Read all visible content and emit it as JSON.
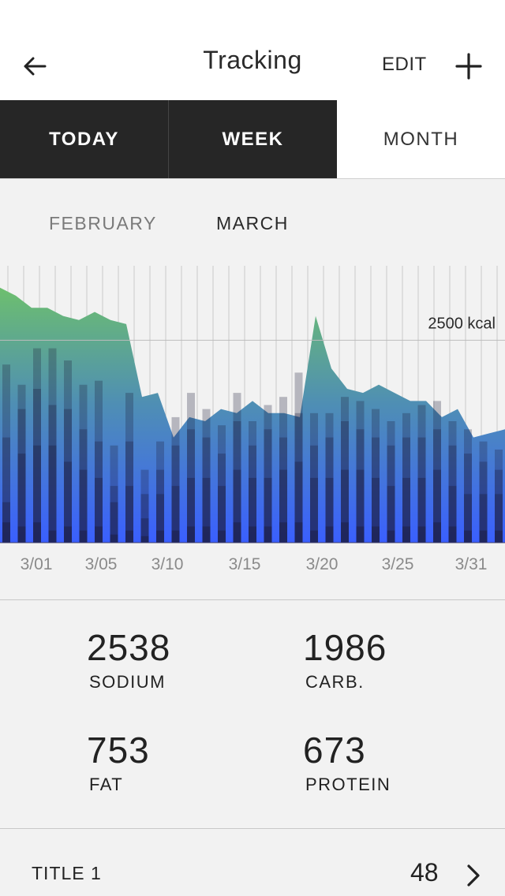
{
  "header": {
    "title": "Tracking",
    "edit_label": "EDIT",
    "back_icon": "arrow-left-icon",
    "add_icon": "plus-icon"
  },
  "tabs": [
    {
      "label": "TODAY",
      "active": false
    },
    {
      "label": "WEEK",
      "active": false
    },
    {
      "label": "MONTH",
      "active": true
    }
  ],
  "months": {
    "previous": "FEBRUARY",
    "current": "MARCH"
  },
  "chart_data": {
    "type": "area",
    "reference_line": {
      "value": 2500,
      "label": "2500 kcal"
    },
    "ylim": [
      0,
      3400
    ],
    "x_tick_labels": [
      "3/01",
      "3/05",
      "3/10",
      "3/15",
      "3/20",
      "3/25",
      "3/31"
    ],
    "area_values": [
      3150,
      3050,
      2900,
      2900,
      2800,
      2750,
      2850,
      2750,
      2700,
      1800,
      1850,
      1300,
      1550,
      1500,
      1650,
      1600,
      1750,
      1600,
      1600,
      1550,
      2800,
      2150,
      1900,
      1850,
      1950,
      1850,
      1750,
      1750,
      1550,
      1650,
      1300,
      1350,
      1400
    ],
    "bar_series": [
      {
        "values": [
          2200,
          1950,
          2400,
          2400,
          2250,
          1950,
          2000,
          1200,
          1850,
          900,
          1250,
          1550,
          1850,
          1650,
          1450,
          1850,
          1500,
          1700,
          1800,
          2100,
          1600,
          1600,
          1800,
          1750,
          1650,
          1500,
          1600,
          1700,
          1750,
          1500,
          1400,
          1250,
          1150
        ]
      },
      {
        "values": [
          1300,
          1650,
          1900,
          1700,
          1650,
          1400,
          1250,
          700,
          1250,
          600,
          900,
          1200,
          1400,
          1300,
          1100,
          1500,
          1200,
          1400,
          1300,
          1600,
          1200,
          1300,
          1500,
          1400,
          1300,
          1200,
          1300,
          1300,
          1400,
          1200,
          1100,
          1000,
          900
        ]
      },
      {
        "values": [
          500,
          1100,
          1200,
          1200,
          1000,
          900,
          800,
          500,
          700,
          300,
          600,
          700,
          800,
          800,
          700,
          900,
          800,
          800,
          900,
          1000,
          800,
          800,
          900,
          900,
          800,
          700,
          800,
          800,
          900,
          700,
          600,
          600,
          600
        ]
      },
      {
        "values": [
          250,
          200,
          250,
          150,
          200,
          150,
          200,
          100,
          150,
          80,
          150,
          150,
          200,
          200,
          150,
          250,
          200,
          200,
          250,
          250,
          150,
          200,
          250,
          200,
          200,
          150,
          200,
          200,
          250,
          200,
          150,
          150,
          150
        ]
      }
    ],
    "colors": {
      "area_top": "#6dbf6e",
      "area_mid": "#4f8fb3",
      "area_bottom": "#3a5fff",
      "bars": "#1b1b3a"
    }
  },
  "stats": [
    {
      "value": "2538",
      "label": "SODIUM"
    },
    {
      "value": "1986",
      "label": "CARB."
    },
    {
      "value": "753",
      "label": "FAT"
    },
    {
      "value": "673",
      "label": "PROTEIN"
    }
  ],
  "list": [
    {
      "title": "TITLE 1",
      "value": "48",
      "icon": "chevron-right-icon"
    }
  ]
}
